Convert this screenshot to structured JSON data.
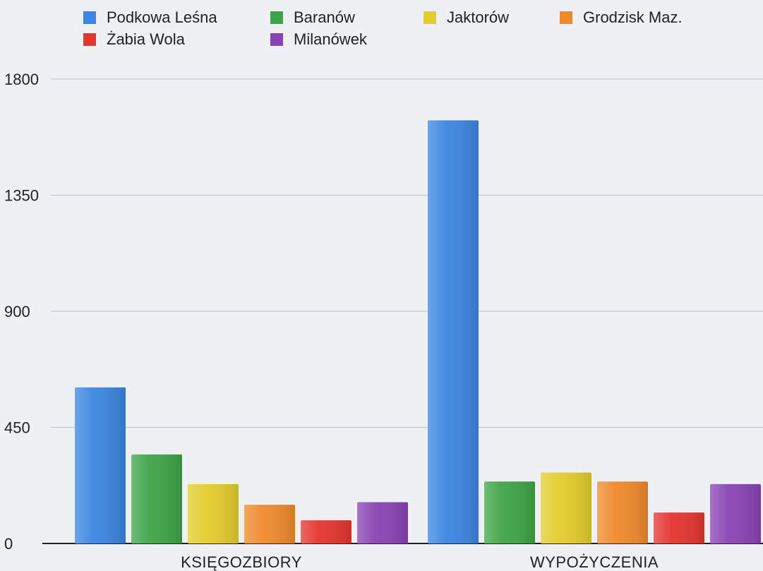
{
  "chart_data": {
    "type": "bar",
    "categories": [
      "KSIĘGOZBIORY",
      "WYPOŻYCZENIA"
    ],
    "series": [
      {
        "name": "Podkowa Leśna",
        "color": "#3b86e0",
        "values": [
          605,
          1640
        ]
      },
      {
        "name": "Baranów",
        "color": "#3fa447",
        "values": [
          345,
          240
        ]
      },
      {
        "name": "Jaktorów",
        "color": "#e3cd2c",
        "values": [
          230,
          275
        ]
      },
      {
        "name": "Grodzisk Maz.",
        "color": "#ef8a2c",
        "values": [
          150,
          240
        ]
      },
      {
        "name": "Żabia Wola",
        "color": "#e5352f",
        "values": [
          90,
          120
        ]
      },
      {
        "name": "Milanówek",
        "color": "#8a43b4",
        "values": [
          160,
          230
        ]
      }
    ],
    "y_ticks": [
      0,
      450,
      900,
      1350,
      1800
    ],
    "ylim": [
      0,
      1800
    ],
    "grid": true,
    "legend_position": "top"
  }
}
